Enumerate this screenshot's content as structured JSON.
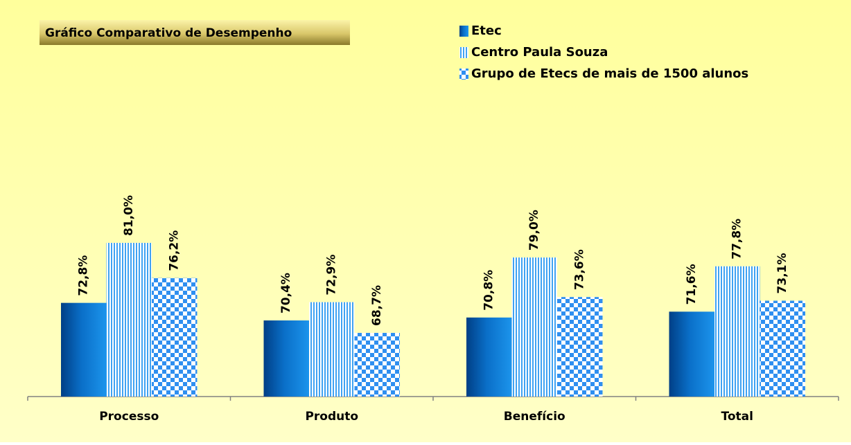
{
  "chart_data": {
    "type": "bar",
    "title": "Gráfico Comparativo de Desempenho",
    "categories": [
      "Processo",
      "Produto",
      "Benefício",
      "Total"
    ],
    "series": [
      {
        "name": "Etec",
        "color": "#0a6fc8",
        "pattern": "solid",
        "values": [
          72.8,
          70.4,
          70.8,
          71.6
        ],
        "value_labels": [
          "72,8%",
          "70,4%",
          "70,8%",
          "71,6%"
        ]
      },
      {
        "name": "Centro Paula Souza",
        "color": "#3fa2f2",
        "pattern": "vertical-stripes",
        "values": [
          81.0,
          72.9,
          79.0,
          77.8
        ],
        "value_labels": [
          "81,0%",
          "72,9%",
          "79,0%",
          "77,8%"
        ]
      },
      {
        "name": "Grupo de Etecs de mais de 1500 alunos",
        "color": "#2f8ff0",
        "pattern": "checker",
        "values": [
          76.2,
          68.7,
          73.6,
          73.1
        ],
        "value_labels": [
          "76,2%",
          "68,7%",
          "73,6%",
          "73,1%"
        ]
      }
    ],
    "ylim": [
      60,
      100
    ],
    "grid": false,
    "legend": "top-right"
  }
}
